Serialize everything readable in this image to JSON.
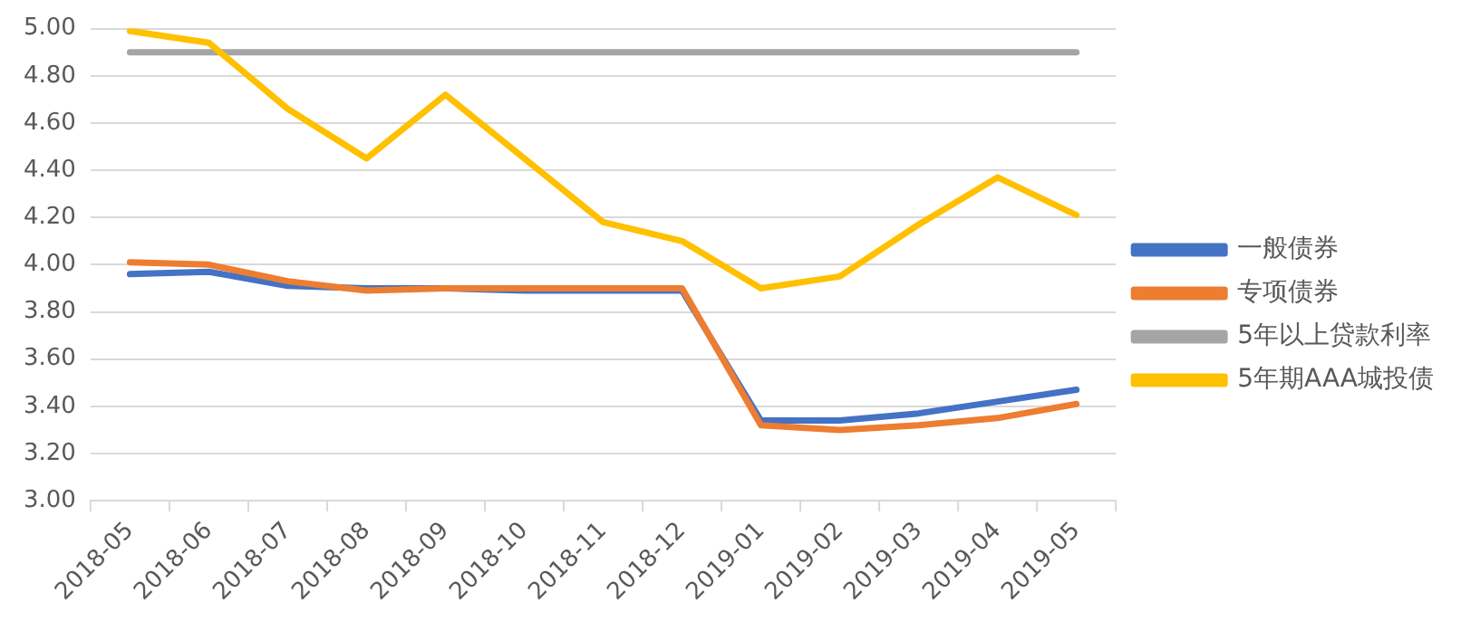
{
  "chart_data": {
    "type": "line",
    "categories": [
      "2018-05",
      "2018-06",
      "2018-07",
      "2018-08",
      "2018-09",
      "2018-10",
      "2018-11",
      "2018-12",
      "2019-01",
      "2019-02",
      "2019-03",
      "2019-04",
      "2019-05"
    ],
    "series": [
      {
        "name": "一般债券",
        "color": "#4472c4",
        "values": [
          3.96,
          3.97,
          3.91,
          3.9,
          3.9,
          3.89,
          3.89,
          3.89,
          3.34,
          3.34,
          3.37,
          3.42,
          3.47
        ]
      },
      {
        "name": "专项债券",
        "color": "#ed7d31",
        "values": [
          4.01,
          4.0,
          3.93,
          3.89,
          3.9,
          3.9,
          3.9,
          3.9,
          3.32,
          3.3,
          3.32,
          3.35,
          3.41
        ]
      },
      {
        "name": "5年以上贷款利率",
        "color": "#a5a5a5",
        "values": [
          4.9,
          4.9,
          4.9,
          4.9,
          4.9,
          4.9,
          4.9,
          4.9,
          4.9,
          4.9,
          4.9,
          4.9,
          4.9
        ]
      },
      {
        "name": "5年期AAA城投债",
        "color": "#ffc000",
        "values": [
          4.99,
          4.94,
          4.66,
          4.45,
          4.72,
          4.45,
          4.18,
          4.1,
          3.9,
          3.95,
          4.17,
          4.37,
          4.21
        ]
      }
    ],
    "ylim": [
      3.0,
      5.0
    ],
    "yticks": [
      {
        "value": 3.0,
        "label": "3.00"
      },
      {
        "value": 3.2,
        "label": "3.20"
      },
      {
        "value": 3.4,
        "label": "3.40"
      },
      {
        "value": 3.6,
        "label": "3.60"
      },
      {
        "value": 3.8,
        "label": "3.80"
      },
      {
        "value": 4.0,
        "label": "4.00"
      },
      {
        "value": 4.2,
        "label": "4.20"
      },
      {
        "value": 4.4,
        "label": "4.40"
      },
      {
        "value": 4.6,
        "label": "4.60"
      },
      {
        "value": 4.8,
        "label": "4.80"
      },
      {
        "value": 5.0,
        "label": "5.00"
      }
    ],
    "grid": "y",
    "legend": "right",
    "marker": "none",
    "line_style": "solid"
  }
}
